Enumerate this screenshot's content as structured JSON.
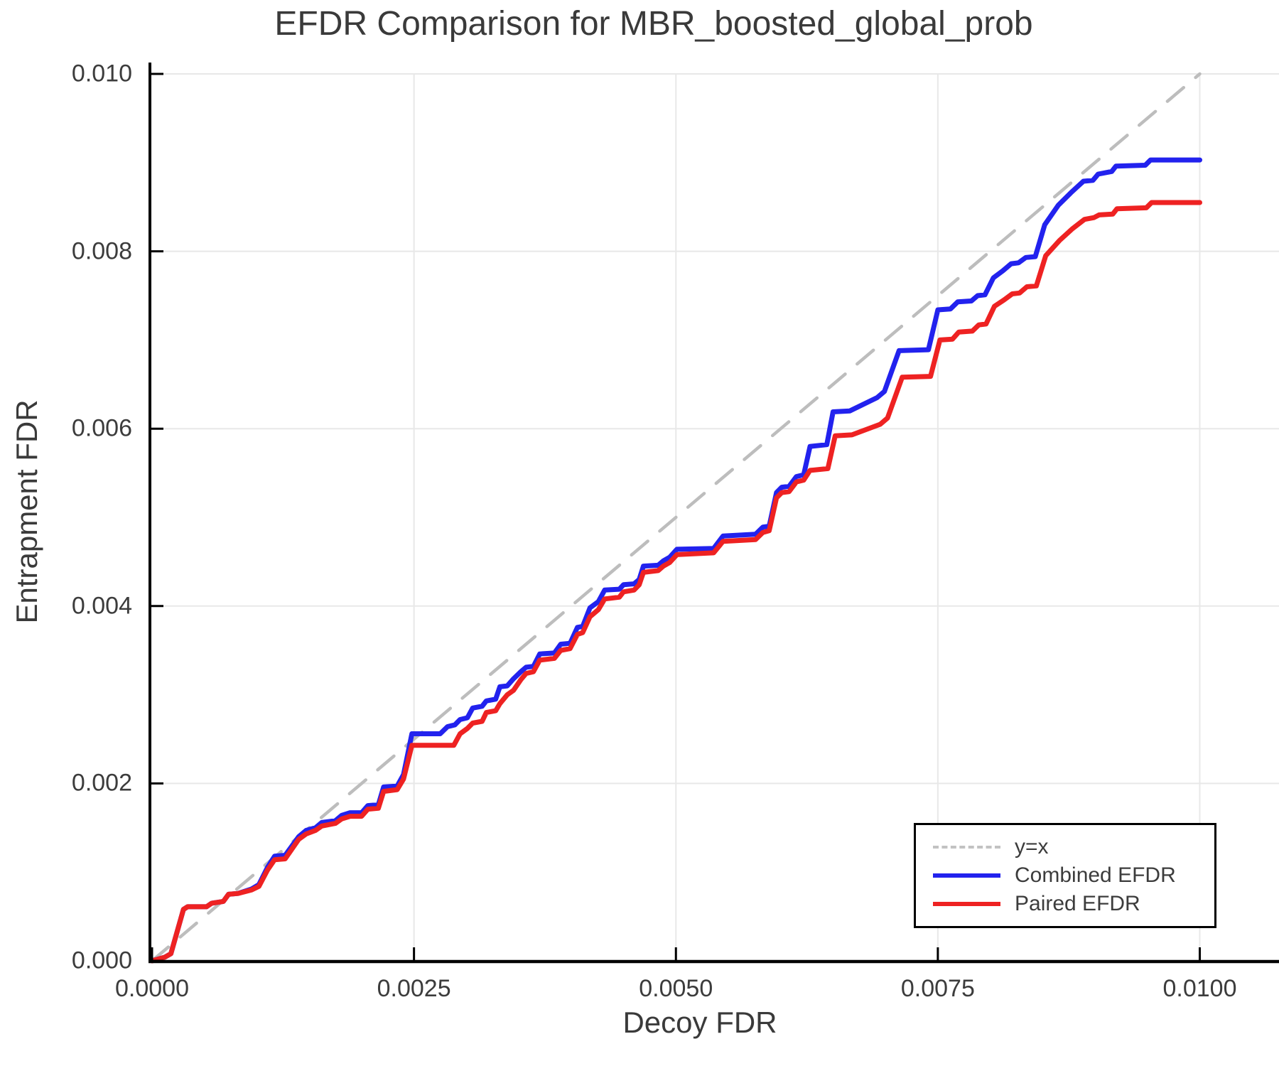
{
  "title": "EFDR Comparison for MBR_boosted_global_prob",
  "axes": {
    "x_label": "Decoy FDR",
    "y_label": "Entrapment FDR",
    "x_ticks": [
      {
        "value": 0.0,
        "label": "0.0000"
      },
      {
        "value": 0.0025,
        "label": "0.0025"
      },
      {
        "value": 0.005,
        "label": "0.0050"
      },
      {
        "value": 0.0075,
        "label": "0.0075"
      },
      {
        "value": 0.01,
        "label": "0.0100"
      }
    ],
    "y_ticks": [
      {
        "value": 0.0,
        "label": "0.000"
      },
      {
        "value": 0.002,
        "label": "0.002"
      },
      {
        "value": 0.004,
        "label": "0.004"
      },
      {
        "value": 0.006,
        "label": "0.006"
      },
      {
        "value": 0.008,
        "label": "0.008"
      },
      {
        "value": 0.01,
        "label": "0.010"
      }
    ]
  },
  "legend": {
    "items": [
      {
        "label": "y=x",
        "style": "dashed",
        "color": "#c2c2c2"
      },
      {
        "label": "Combined EFDR",
        "style": "solid",
        "color": "#2222ee"
      },
      {
        "label": "Paired EFDR",
        "style": "solid",
        "color": "#ee2222"
      }
    ]
  },
  "colors": {
    "grid": "#e8e8e8",
    "axis": "#000000",
    "reference": "#bdbdbd",
    "combined": "#2222ee",
    "paired": "#ee2222",
    "text": "#3a3a3a"
  },
  "chart_data": {
    "type": "line",
    "title": "EFDR Comparison for MBR_boosted_global_prob",
    "xlabel": "Decoy FDR",
    "ylabel": "Entrapment FDR",
    "xlim": [
      0.0,
      0.01
    ],
    "ylim": [
      0.0,
      0.01
    ],
    "grid": true,
    "legend_position": "bottom-right",
    "series": [
      {
        "name": "y=x",
        "color": "#bdbdbd",
        "style": "dashed",
        "width": 4.5,
        "points": [
          [
            0.0,
            0.0
          ],
          [
            0.01,
            0.01
          ]
        ]
      },
      {
        "name": "Combined EFDR",
        "color": "#2222ee",
        "style": "solid",
        "width": 7,
        "points": [
          [
            0.0,
            0.0
          ],
          [
            0.00012,
            4e-05
          ],
          [
            0.00018,
            8e-05
          ],
          [
            0.0003,
            0.00058
          ],
          [
            0.00034,
            0.00061
          ],
          [
            0.00052,
            0.00061
          ],
          [
            0.00057,
            0.00065
          ],
          [
            0.00068,
            0.00067
          ],
          [
            0.00073,
            0.00075
          ],
          [
            0.00082,
            0.00076
          ],
          [
            0.00095,
            0.00081
          ],
          [
            0.00102,
            0.00086
          ],
          [
            0.0011,
            0.00105
          ],
          [
            0.00117,
            0.00118
          ],
          [
            0.00127,
            0.00119
          ],
          [
            0.0014,
            0.0014
          ],
          [
            0.00147,
            0.00147
          ],
          [
            0.00156,
            0.0015
          ],
          [
            0.00162,
            0.00156
          ],
          [
            0.00175,
            0.00158
          ],
          [
            0.00181,
            0.00164
          ],
          [
            0.00189,
            0.00167
          ],
          [
            0.002,
            0.00167
          ],
          [
            0.00206,
            0.00175
          ],
          [
            0.00216,
            0.00176
          ],
          [
            0.00221,
            0.00196
          ],
          [
            0.00234,
            0.00197
          ],
          [
            0.0024,
            0.0021
          ],
          [
            0.00248,
            0.00256
          ],
          [
            0.00275,
            0.00256
          ],
          [
            0.00282,
            0.00264
          ],
          [
            0.00289,
            0.00266
          ],
          [
            0.00294,
            0.00272
          ],
          [
            0.00301,
            0.00274
          ],
          [
            0.00306,
            0.00285
          ],
          [
            0.00315,
            0.00287
          ],
          [
            0.00319,
            0.00293
          ],
          [
            0.00328,
            0.00295
          ],
          [
            0.00332,
            0.00309
          ],
          [
            0.00339,
            0.0031
          ],
          [
            0.00345,
            0.00318
          ],
          [
            0.00352,
            0.00326
          ],
          [
            0.00357,
            0.00331
          ],
          [
            0.00364,
            0.00332
          ],
          [
            0.0037,
            0.00346
          ],
          [
            0.00384,
            0.00347
          ],
          [
            0.0039,
            0.00357
          ],
          [
            0.00399,
            0.00358
          ],
          [
            0.00406,
            0.00376
          ],
          [
            0.00411,
            0.00377
          ],
          [
            0.00418,
            0.00398
          ],
          [
            0.00426,
            0.00405
          ],
          [
            0.00432,
            0.00418
          ],
          [
            0.00446,
            0.00419
          ],
          [
            0.0045,
            0.00424
          ],
          [
            0.0046,
            0.00425
          ],
          [
            0.00465,
            0.0043
          ],
          [
            0.00469,
            0.00445
          ],
          [
            0.00483,
            0.00446
          ],
          [
            0.00488,
            0.00451
          ],
          [
            0.00494,
            0.00455
          ],
          [
            0.00501,
            0.00464
          ],
          [
            0.00536,
            0.00465
          ],
          [
            0.00545,
            0.00479
          ],
          [
            0.00576,
            0.00481
          ],
          [
            0.00583,
            0.00489
          ],
          [
            0.00589,
            0.0049
          ],
          [
            0.00596,
            0.00528
          ],
          [
            0.00601,
            0.00534
          ],
          [
            0.00608,
            0.00535
          ],
          [
            0.00615,
            0.00546
          ],
          [
            0.00622,
            0.00548
          ],
          [
            0.00628,
            0.0058
          ],
          [
            0.00644,
            0.00582
          ],
          [
            0.0065,
            0.00619
          ],
          [
            0.00666,
            0.0062
          ],
          [
            0.00692,
            0.00635
          ],
          [
            0.00699,
            0.00642
          ],
          [
            0.00713,
            0.00688
          ],
          [
            0.00741,
            0.00689
          ],
          [
            0.0075,
            0.00734
          ],
          [
            0.00762,
            0.00735
          ],
          [
            0.00769,
            0.00743
          ],
          [
            0.00782,
            0.00744
          ],
          [
            0.00788,
            0.0075
          ],
          [
            0.00795,
            0.00751
          ],
          [
            0.00803,
            0.0077
          ],
          [
            0.00812,
            0.00778
          ],
          [
            0.0082,
            0.00786
          ],
          [
            0.00827,
            0.00787
          ],
          [
            0.00834,
            0.00793
          ],
          [
            0.00843,
            0.00794
          ],
          [
            0.00852,
            0.0083
          ],
          [
            0.00865,
            0.00852
          ],
          [
            0.00877,
            0.00866
          ],
          [
            0.00889,
            0.00879
          ],
          [
            0.00898,
            0.0088
          ],
          [
            0.00903,
            0.00887
          ],
          [
            0.00916,
            0.0089
          ],
          [
            0.0092,
            0.00896
          ],
          [
            0.00948,
            0.00897
          ],
          [
            0.00953,
            0.00903
          ],
          [
            0.01,
            0.00903
          ]
        ]
      },
      {
        "name": "Paired EFDR",
        "color": "#ee2222",
        "style": "solid",
        "width": 7,
        "points": [
          [
            0.0,
            0.0
          ],
          [
            0.00012,
            4e-05
          ],
          [
            0.00018,
            8e-05
          ],
          [
            0.0003,
            0.00058
          ],
          [
            0.00034,
            0.00061
          ],
          [
            0.00052,
            0.00061
          ],
          [
            0.00057,
            0.00065
          ],
          [
            0.00068,
            0.00067
          ],
          [
            0.00073,
            0.00075
          ],
          [
            0.00082,
            0.00076
          ],
          [
            0.00095,
            0.0008
          ],
          [
            0.00102,
            0.00084
          ],
          [
            0.0011,
            0.00102
          ],
          [
            0.00117,
            0.00114
          ],
          [
            0.00127,
            0.00115
          ],
          [
            0.0014,
            0.00137
          ],
          [
            0.00147,
            0.00143
          ],
          [
            0.00156,
            0.00147
          ],
          [
            0.00162,
            0.00152
          ],
          [
            0.00175,
            0.00155
          ],
          [
            0.00181,
            0.0016
          ],
          [
            0.00189,
            0.00163
          ],
          [
            0.002,
            0.00163
          ],
          [
            0.00206,
            0.00171
          ],
          [
            0.00216,
            0.00172
          ],
          [
            0.00221,
            0.00191
          ],
          [
            0.00234,
            0.00193
          ],
          [
            0.0024,
            0.00205
          ],
          [
            0.00248,
            0.00243
          ],
          [
            0.00288,
            0.00243
          ],
          [
            0.00294,
            0.00256
          ],
          [
            0.00301,
            0.00262
          ],
          [
            0.00306,
            0.00268
          ],
          [
            0.00315,
            0.0027
          ],
          [
            0.00319,
            0.0028
          ],
          [
            0.00328,
            0.00282
          ],
          [
            0.00332,
            0.0029
          ],
          [
            0.00339,
            0.003
          ],
          [
            0.00345,
            0.00305
          ],
          [
            0.00352,
            0.00317
          ],
          [
            0.00357,
            0.00324
          ],
          [
            0.00364,
            0.00326
          ],
          [
            0.0037,
            0.00339
          ],
          [
            0.00384,
            0.00341
          ],
          [
            0.0039,
            0.0035
          ],
          [
            0.00399,
            0.00352
          ],
          [
            0.00406,
            0.00368
          ],
          [
            0.00411,
            0.0037
          ],
          [
            0.00418,
            0.00388
          ],
          [
            0.00426,
            0.00396
          ],
          [
            0.00432,
            0.00408
          ],
          [
            0.00446,
            0.0041
          ],
          [
            0.0045,
            0.00416
          ],
          [
            0.0046,
            0.00418
          ],
          [
            0.00465,
            0.00424
          ],
          [
            0.00469,
            0.00438
          ],
          [
            0.00483,
            0.0044
          ],
          [
            0.00488,
            0.00445
          ],
          [
            0.00494,
            0.00449
          ],
          [
            0.00501,
            0.00458
          ],
          [
            0.00536,
            0.0046
          ],
          [
            0.00545,
            0.00473
          ],
          [
            0.00576,
            0.00475
          ],
          [
            0.00583,
            0.00483
          ],
          [
            0.00589,
            0.00485
          ],
          [
            0.00596,
            0.00522
          ],
          [
            0.00601,
            0.00528
          ],
          [
            0.00608,
            0.00529
          ],
          [
            0.00615,
            0.0054
          ],
          [
            0.00622,
            0.00542
          ],
          [
            0.00628,
            0.00553
          ],
          [
            0.00645,
            0.00555
          ],
          [
            0.00652,
            0.00592
          ],
          [
            0.00668,
            0.00593
          ],
          [
            0.00695,
            0.00605
          ],
          [
            0.00702,
            0.00612
          ],
          [
            0.00716,
            0.00658
          ],
          [
            0.00743,
            0.00659
          ],
          [
            0.00752,
            0.007
          ],
          [
            0.00764,
            0.00701
          ],
          [
            0.0077,
            0.00709
          ],
          [
            0.00783,
            0.0071
          ],
          [
            0.00789,
            0.00717
          ],
          [
            0.00796,
            0.00718
          ],
          [
            0.00804,
            0.00738
          ],
          [
            0.00813,
            0.00745
          ],
          [
            0.00821,
            0.00752
          ],
          [
            0.00828,
            0.00753
          ],
          [
            0.00835,
            0.0076
          ],
          [
            0.00844,
            0.00761
          ],
          [
            0.00853,
            0.00795
          ],
          [
            0.00866,
            0.00812
          ],
          [
            0.00878,
            0.00825
          ],
          [
            0.0089,
            0.00836
          ],
          [
            0.00899,
            0.00838
          ],
          [
            0.00904,
            0.00841
          ],
          [
            0.00917,
            0.00842
          ],
          [
            0.00921,
            0.00848
          ],
          [
            0.00949,
            0.00849
          ],
          [
            0.00954,
            0.00855
          ],
          [
            0.01,
            0.00855
          ]
        ]
      }
    ]
  }
}
